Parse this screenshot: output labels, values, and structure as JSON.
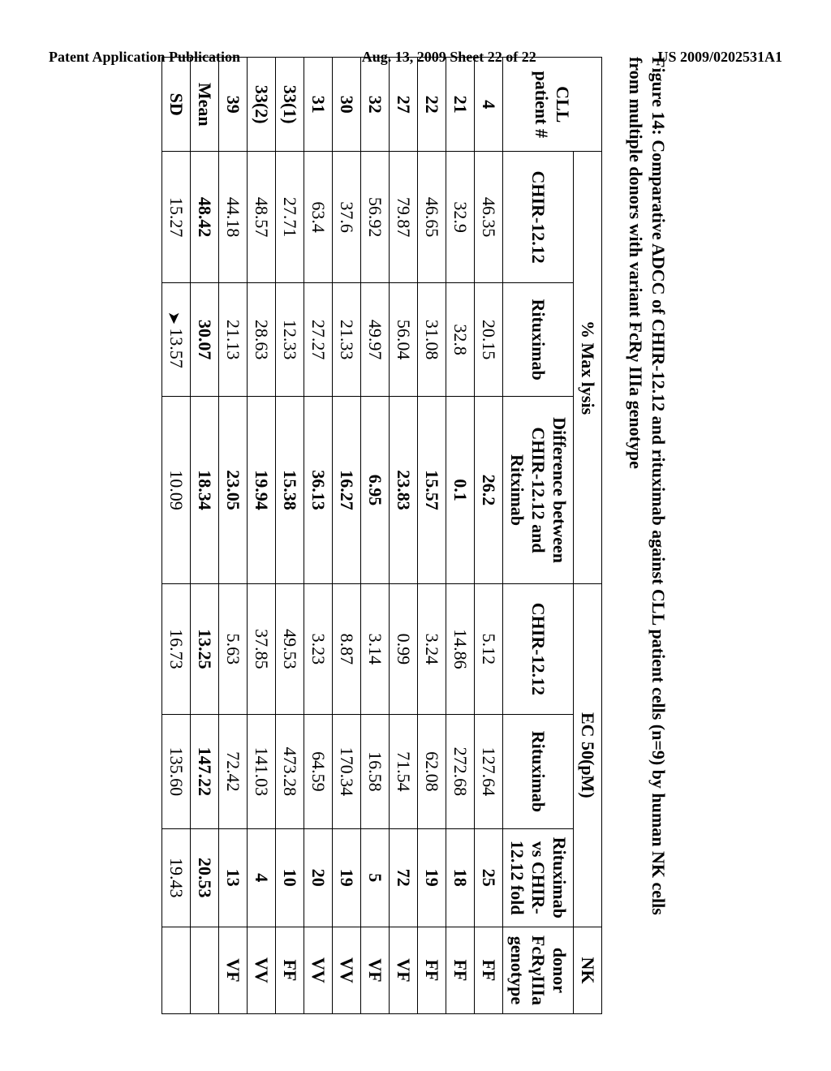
{
  "header": {
    "left": "Patent Application Publication",
    "center": "Aug. 13, 2009  Sheet 22 of 22",
    "right": "US 2009/0202531A1"
  },
  "figure_title_line1": "Figure 14: Comparative ADCC of CHIR-12.12 and rituximab against CLL patient cells (n=9)  by human NK cells",
  "figure_title_line2": "from multiple donors with variant FcRγ IIIa genotype",
  "table": {
    "section_headers": {
      "max_lysis": "% Max lysis",
      "ec50": "EC 50(pM)",
      "nk": "NK"
    },
    "col_headers": {
      "cll": "CLL patient #",
      "chir": "CHIR-12.12",
      "ritux": "Rituximab",
      "diff": "Difference between CHIR-12.12 and Ritximab",
      "chir2": "CHIR-12.12",
      "ritux2": "Rituximab",
      "fold": "Rituximab vs CHIR-12.12 fold",
      "nk2": "donor FcRγIIIa genotype"
    },
    "rows": [
      {
        "id": "4",
        "chir": "46.35",
        "ritux": "20.15",
        "diff": "26.2",
        "chir2": "5.12",
        "ritux2": "127.64",
        "fold": "25",
        "nk": "FF"
      },
      {
        "id": "21",
        "chir": "32.9",
        "ritux": "32.8",
        "diff": "0.1",
        "chir2": "14.86",
        "ritux2": "272.68",
        "fold": "18",
        "nk": "FF"
      },
      {
        "id": "22",
        "chir": "46.65",
        "ritux": "31.08",
        "diff": "15.57",
        "chir2": "3.24",
        "ritux2": "62.08",
        "fold": "19",
        "nk": "FF"
      },
      {
        "id": "27",
        "chir": "79.87",
        "ritux": "56.04",
        "diff": "23.83",
        "chir2": "0.99",
        "ritux2": "71.54",
        "fold": "72",
        "nk": "VF"
      },
      {
        "id": "32",
        "chir": "56.92",
        "ritux": "49.97",
        "diff": "6.95",
        "chir2": "3.14",
        "ritux2": "16.58",
        "fold": "5",
        "nk": "VF"
      },
      {
        "id": "30",
        "chir": "37.6",
        "ritux": "21.33",
        "diff": "16.27",
        "chir2": "8.87",
        "ritux2": "170.34",
        "fold": "19",
        "nk": "VV"
      },
      {
        "id": "31",
        "chir": "63.4",
        "ritux": "27.27",
        "diff": "36.13",
        "chir2": "3.23",
        "ritux2": "64.59",
        "fold": "20",
        "nk": "VV"
      },
      {
        "id": "33(1)",
        "chir": "27.71",
        "ritux": "12.33",
        "diff": "15.38",
        "chir2": "49.53",
        "ritux2": "473.28",
        "fold": "10",
        "nk": "FF"
      },
      {
        "id": "33(2)",
        "chir": "48.57",
        "ritux": "28.63",
        "diff": "19.94",
        "chir2": "37.85",
        "ritux2": "141.03",
        "fold": "4",
        "nk": "VV"
      },
      {
        "id": "39",
        "chir": "44.18",
        "ritux": "21.13",
        "diff": "23.05",
        "chir2": "5.63",
        "ritux2": "72.42",
        "fold": "13",
        "nk": "VF"
      }
    ],
    "mean": {
      "id": "Mean",
      "chir": "48.42",
      "ritux": "30.07",
      "diff": "18.34",
      "chir2": "13.25",
      "ritux2": "147.22",
      "fold": "20.53",
      "nk": ""
    },
    "sd": {
      "id": "SD",
      "chir": "15.27",
      "ritux": "13.57",
      "diff": "10.09",
      "chir2": "16.73",
      "ritux2": "135.60",
      "fold": "19.43",
      "nk": ""
    }
  }
}
